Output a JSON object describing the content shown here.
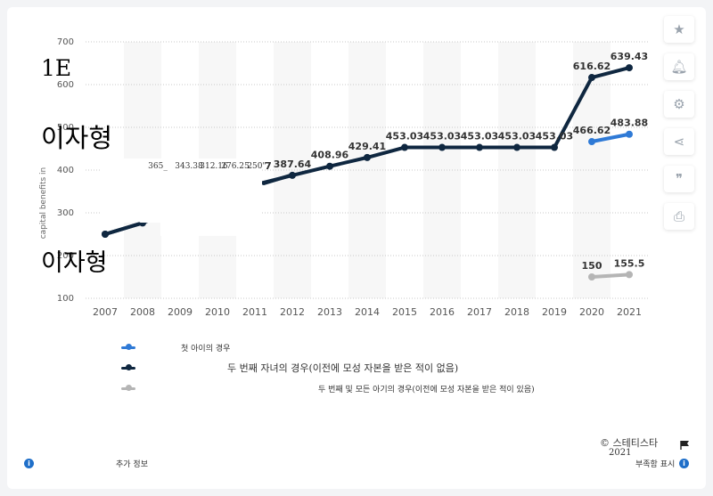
{
  "chart_data": {
    "type": "line",
    "ylabel": "capital benefits in",
    "ylim": [
      100,
      700
    ],
    "yticks": [
      100,
      200,
      300,
      400,
      500,
      600,
      700
    ],
    "categories": [
      "2007",
      "2008",
      "2009",
      "2010",
      "2011",
      "2012",
      "2013",
      "2014",
      "2015",
      "2016",
      "2017",
      "2018",
      "2019",
      "2020",
      "2021"
    ],
    "grid": true,
    "series": [
      {
        "name": "첫 아이의 경우",
        "color": "#2f7ad6",
        "values": [
          null,
          null,
          null,
          null,
          null,
          null,
          null,
          null,
          null,
          null,
          null,
          null,
          null,
          466.62,
          483.88
        ],
        "labels": [
          "",
          "",
          "",
          "",
          "",
          "",
          "",
          "",
          "",
          "",
          "",
          "",
          "",
          "466.62",
          "483.88"
        ]
      },
      {
        "name": "두 번째 자녀의 경우(이전에 모성 자본을 받은 적이 없음)",
        "color": "#0f2740",
        "values": [
          250.0,
          276.25,
          312.16,
          343.38,
          365.7,
          387.64,
          408.96,
          429.41,
          453.03,
          453.03,
          453.03,
          453.03,
          453.03,
          616.62,
          639.43
        ],
        "labels": [
          "",
          "",
          "",
          "",
          "",
          "387.64",
          "408.96",
          "429.41",
          "453.03",
          "453.03",
          "453.03",
          "453.03",
          "453.03",
          "616.62",
          "639.43"
        ]
      },
      {
        "name": "두 번째 및 모든 아기의 경우(이전에 모성 자본을 받은 적이 있음)",
        "color": "#b5b5b5",
        "values": [
          null,
          null,
          null,
          null,
          null,
          null,
          null,
          null,
          null,
          null,
          null,
          null,
          null,
          150,
          155.5
        ],
        "labels": [
          "",
          "",
          "",
          "",
          "",
          "",
          "",
          "",
          "",
          "",
          "",
          "",
          "",
          "150",
          "155.5"
        ]
      }
    ]
  },
  "overlay": {
    "garbled_labels": [
      "365_",
      "343.38",
      "312.16",
      "276.25",
      "250\"",
      "7"
    ],
    "text_1e": "1E",
    "text_korean_1": "이자형",
    "text_korean_2": "이자형"
  },
  "tools": {
    "icons": [
      "star-icon",
      "bell-icon",
      "gear-icon",
      "share-icon",
      "quote-icon",
      "print-icon"
    ]
  },
  "footer": {
    "copyright": "© 스테티스타",
    "year": "2021",
    "additional_info": "추가 정보",
    "show_source": "부족함 표시"
  }
}
